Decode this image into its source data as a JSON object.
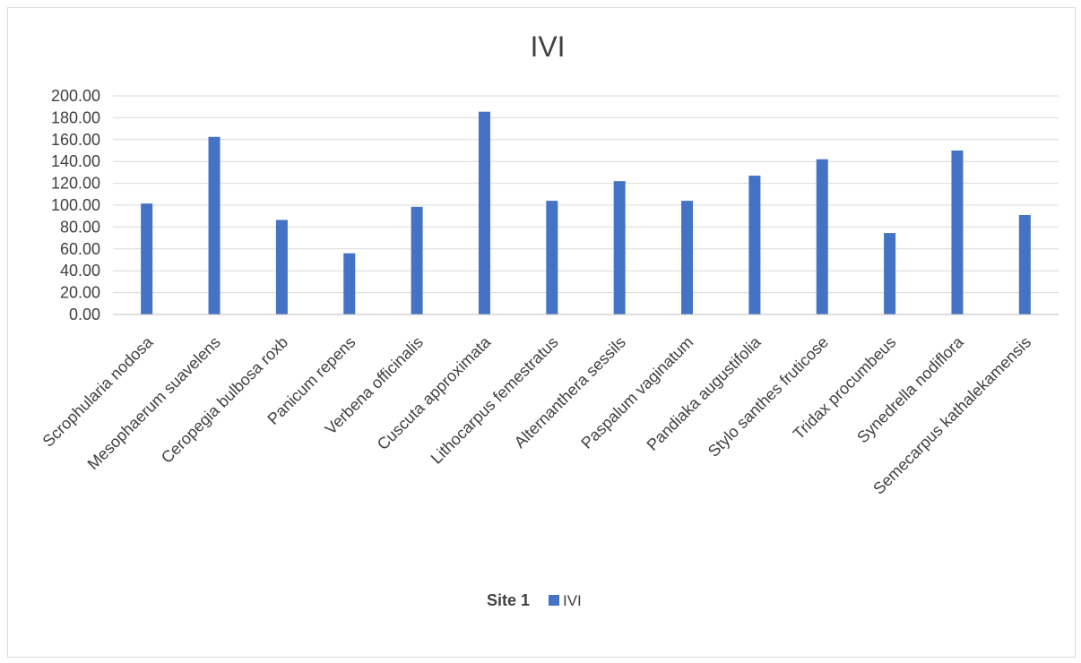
{
  "chart_data": {
    "type": "bar",
    "title": "IVI",
    "xlabel": "",
    "ylabel": "",
    "ylim": [
      0,
      200
    ],
    "yticks": [
      "0.00",
      "20.00",
      "40.00",
      "60.00",
      "80.00",
      "100.00",
      "120.00",
      "140.00",
      "160.00",
      "180.00",
      "200.00"
    ],
    "grid": true,
    "legend": {
      "title": "Site 1",
      "position": "bottom"
    },
    "categories": [
      "Scrophularia nodosa",
      "Mesophaerum suavelens",
      "Ceropegia bulbosa roxb",
      "Panicum repens",
      "Verbena officinalis",
      "Cuscuta approximata",
      "Lithocarpus femestratus",
      "Alternanthera sessils",
      "Paspalum vaginatum",
      "Pandiaka augustifolia",
      "Stylo santhes fruticose",
      "Tridax procumbeus",
      "Synedrella nodiflora",
      "Semecarpus kathalekamensis"
    ],
    "series": [
      {
        "name": "IVI",
        "color": "#4472c4",
        "values": [
          101.5,
          162.5,
          86.5,
          56,
          98.5,
          185.5,
          104,
          122,
          104,
          127,
          142,
          74.5,
          150,
          91
        ]
      }
    ]
  }
}
